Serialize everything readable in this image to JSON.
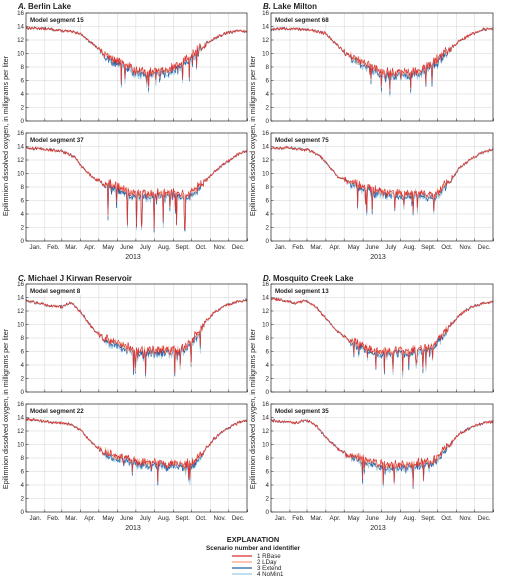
{
  "figure": {
    "y_axis_label": "Epilimnion dissolved oxygen, in milligrams per liter",
    "x_ticks": [
      "Jan.",
      "Feb.",
      "Mar.",
      "Apr.",
      "May",
      "June",
      "July",
      "Aug.",
      "Sept.",
      "Oct.",
      "Nov.",
      "Dec."
    ],
    "y_ticks": [
      "0",
      "2",
      "4",
      "6",
      "8",
      "10",
      "12",
      "14",
      "16"
    ],
    "year": "2013"
  },
  "explanation": {
    "title": "EXPLANATION",
    "subtitle": "Scenario number and identifier",
    "items": [
      {
        "label": "1 RBase",
        "color": "#d9302f"
      },
      {
        "label": "2 LDay",
        "color": "#f4a582"
      },
      {
        "label": "3 Extend",
        "color": "#1f5fa8"
      },
      {
        "label": "4 NoMin1",
        "color": "#9ecae1"
      }
    ]
  },
  "chart_data": [
    {
      "type": "line",
      "letter": "A.",
      "lake": "Berlin Lake",
      "segment": "Model segment 15",
      "xlim": [
        1,
        365
      ],
      "ylim": [
        0,
        16
      ],
      "grid": true,
      "series": [
        {
          "name": "1 RBase"
        },
        {
          "name": "2 LDay"
        },
        {
          "name": "3 Extend"
        },
        {
          "name": "4 NoMin1"
        }
      ],
      "profile": {
        "x": [
          1,
          30,
          60,
          90,
          110,
          130,
          150,
          165,
          180,
          200,
          215,
          235,
          250,
          265,
          280,
          295,
          310,
          330,
          350,
          365
        ],
        "y": [
          13.8,
          13.7,
          13.4,
          13.0,
          11.5,
          9.8,
          8.6,
          8.0,
          7.3,
          7.0,
          7.1,
          7.2,
          7.8,
          8.8,
          10.0,
          11.2,
          12.2,
          13.0,
          13.4,
          13.2
        ]
      }
    },
    {
      "type": "line",
      "letter": "B.",
      "lake": "Lake Milton",
      "segment": "Model segment 68",
      "xlim": [
        1,
        365
      ],
      "ylim": [
        0,
        16
      ],
      "grid": true,
      "series": [
        {
          "name": "1 RBase"
        },
        {
          "name": "2 LDay"
        },
        {
          "name": "3 Extend"
        },
        {
          "name": "4 NoMin1"
        }
      ],
      "profile": {
        "x": [
          1,
          30,
          60,
          90,
          110,
          130,
          150,
          165,
          180,
          200,
          215,
          235,
          250,
          265,
          280,
          295,
          310,
          330,
          350,
          365
        ],
        "y": [
          13.6,
          13.7,
          13.5,
          13.0,
          11.2,
          9.5,
          8.4,
          7.8,
          7.2,
          6.8,
          6.9,
          7.0,
          7.4,
          8.2,
          9.4,
          10.6,
          11.8,
          12.9,
          13.6,
          13.6
        ]
      }
    },
    {
      "type": "line",
      "letter": "A.",
      "lake": "Berlin Lake",
      "segment": "Model segment 37",
      "xlim": [
        1,
        365
      ],
      "ylim": [
        0,
        16
      ],
      "grid": true,
      "series": [
        {
          "name": "1 RBase"
        },
        {
          "name": "2 LDay"
        },
        {
          "name": "3 Extend"
        },
        {
          "name": "4 NoMin1"
        }
      ],
      "profile": {
        "x": [
          1,
          30,
          60,
          80,
          95,
          110,
          130,
          150,
          165,
          180,
          200,
          215,
          235,
          250,
          265,
          280,
          295,
          310,
          330,
          350,
          365
        ],
        "y": [
          13.8,
          13.6,
          13.3,
          12.5,
          10.8,
          9.5,
          8.4,
          7.8,
          7.2,
          6.8,
          6.6,
          6.8,
          6.9,
          7.0,
          6.5,
          7.2,
          8.8,
          10.2,
          11.6,
          12.8,
          13.4
        ]
      }
    },
    {
      "type": "line",
      "letter": "B.",
      "lake": "Lake Milton",
      "segment": "Model segment 75",
      "xlim": [
        1,
        365
      ],
      "ylim": [
        0,
        16
      ],
      "grid": true,
      "series": [
        {
          "name": "1 RBase"
        },
        {
          "name": "2 LDay"
        },
        {
          "name": "3 Extend"
        },
        {
          "name": "4 NoMin1"
        }
      ],
      "profile": {
        "x": [
          1,
          30,
          60,
          80,
          95,
          110,
          130,
          150,
          165,
          180,
          200,
          215,
          235,
          250,
          265,
          280,
          295,
          310,
          330,
          350,
          365
        ],
        "y": [
          13.7,
          13.8,
          13.5,
          12.8,
          11.2,
          9.6,
          8.6,
          7.9,
          7.4,
          7.0,
          6.8,
          6.7,
          6.8,
          6.7,
          6.5,
          7.4,
          9.0,
          10.8,
          12.2,
          13.2,
          13.6
        ]
      }
    },
    {
      "type": "line",
      "letter": "C.",
      "lake": "Michael J Kirwan Reservoir",
      "segment": "Model segment 8",
      "xlim": [
        1,
        365
      ],
      "ylim": [
        0,
        16
      ],
      "grid": true,
      "series": [
        {
          "name": "1 RBase"
        },
        {
          "name": "2 LDay"
        },
        {
          "name": "3 Extend"
        },
        {
          "name": "4 NoMin1"
        }
      ],
      "profile": {
        "x": [
          1,
          20,
          40,
          60,
          75,
          90,
          110,
          130,
          150,
          165,
          180,
          200,
          215,
          235,
          250,
          265,
          280,
          295,
          310,
          330,
          350,
          365
        ],
        "y": [
          13.5,
          13.2,
          12.8,
          12.6,
          13.3,
          12.0,
          9.5,
          7.8,
          7.0,
          6.4,
          6.0,
          5.9,
          5.9,
          5.9,
          6.0,
          6.4,
          8.0,
          10.0,
          11.8,
          12.8,
          13.4,
          13.6
        ]
      }
    },
    {
      "type": "line",
      "letter": "D.",
      "lake": "Mosquito Creek Lake",
      "segment": "Model segment 13",
      "xlim": [
        1,
        365
      ],
      "ylim": [
        0,
        16
      ],
      "grid": true,
      "series": [
        {
          "name": "1 RBase"
        },
        {
          "name": "2 LDay"
        },
        {
          "name": "3 Extend"
        },
        {
          "name": "4 NoMin1"
        }
      ],
      "profile": {
        "x": [
          1,
          20,
          40,
          60,
          75,
          90,
          110,
          130,
          150,
          165,
          180,
          200,
          215,
          235,
          250,
          265,
          280,
          295,
          310,
          330,
          350,
          365
        ],
        "y": [
          13.8,
          13.6,
          13.2,
          13.5,
          12.6,
          11.0,
          9.0,
          7.4,
          6.6,
          6.0,
          5.8,
          5.8,
          5.9,
          6.0,
          6.1,
          6.6,
          8.0,
          9.8,
          11.4,
          12.6,
          13.2,
          13.4
        ]
      }
    },
    {
      "type": "line",
      "letter": "C.",
      "lake": "Michael J Kirwan Reservoir",
      "segment": "Model segment 22",
      "xlim": [
        1,
        365
      ],
      "ylim": [
        0,
        16
      ],
      "grid": true,
      "series": [
        {
          "name": "1 RBase"
        },
        {
          "name": "2 LDay"
        },
        {
          "name": "3 Extend"
        },
        {
          "name": "4 NoMin1"
        }
      ],
      "profile": {
        "x": [
          1,
          20,
          40,
          60,
          75,
          90,
          110,
          130,
          150,
          165,
          180,
          200,
          215,
          235,
          250,
          265,
          280,
          295,
          310,
          330,
          350,
          365
        ],
        "y": [
          13.8,
          13.6,
          13.3,
          13.2,
          13.0,
          12.2,
          10.2,
          8.8,
          8.0,
          7.6,
          7.2,
          7.0,
          6.9,
          6.8,
          6.9,
          6.8,
          7.4,
          9.0,
          10.8,
          12.2,
          13.2,
          13.6
        ]
      }
    },
    {
      "type": "line",
      "letter": "D.",
      "lake": "Mosquito Creek Lake",
      "segment": "Model segment 35",
      "xlim": [
        1,
        365
      ],
      "ylim": [
        0,
        16
      ],
      "grid": true,
      "series": [
        {
          "name": "1 RBase"
        },
        {
          "name": "2 LDay"
        },
        {
          "name": "3 Extend"
        },
        {
          "name": "4 NoMin1"
        }
      ],
      "profile": {
        "x": [
          1,
          20,
          40,
          60,
          75,
          90,
          110,
          130,
          150,
          165,
          180,
          200,
          215,
          235,
          250,
          265,
          280,
          295,
          310,
          330,
          350,
          365
        ],
        "y": [
          13.6,
          13.4,
          13.2,
          13.6,
          12.8,
          11.2,
          9.4,
          8.2,
          7.6,
          7.2,
          6.8,
          6.6,
          6.6,
          6.8,
          7.0,
          7.2,
          8.4,
          10.2,
          11.6,
          12.6,
          13.2,
          13.4
        ]
      }
    }
  ]
}
